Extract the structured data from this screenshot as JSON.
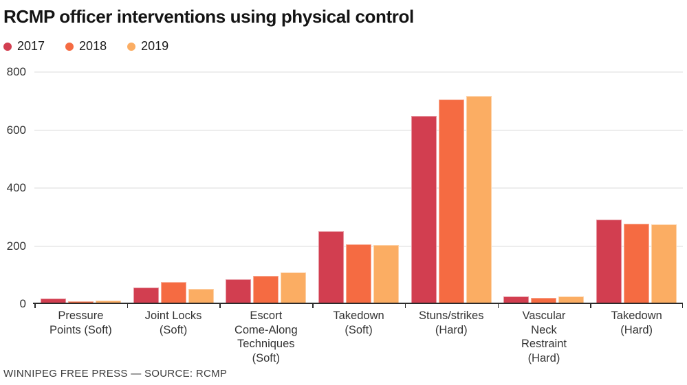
{
  "header": {
    "title": "RCMP officer interventions using physical control"
  },
  "footer": {
    "credit": "WINNIPEG FREE PRESS — SOURCE: RCMP"
  },
  "colors": {
    "series_2017": "#d23e50",
    "series_2018": "#f56b42",
    "series_2019": "#fbad63",
    "gridline": "#ededed",
    "axis": "#2b2b2b",
    "text": "#333333"
  },
  "chart_data": {
    "type": "bar",
    "title": "RCMP officer interventions using physical control",
    "categories": [
      "Pressure Points (Soft)",
      "Joint Locks (Soft)",
      "Escort Come-Along Techniques (Soft)",
      "Takedown (Soft)",
      "Stuns/strikes (Hard)",
      "Vascular Neck Restraint (Hard)",
      "Takedown (Hard)"
    ],
    "xtick_lines": [
      [
        "Pressure",
        "Points (Soft)"
      ],
      [
        "Joint Locks",
        "(Soft)"
      ],
      [
        "Escort",
        "Come-Along",
        "Techniques",
        "(Soft)"
      ],
      [
        "Takedown",
        "(Soft)"
      ],
      [
        "Stuns/strikes",
        "(Hard)"
      ],
      [
        "Vascular",
        "Neck",
        "Restraint",
        "(Hard)"
      ],
      [
        "Takedown",
        "(Hard)"
      ]
    ],
    "series": [
      {
        "name": "2017",
        "color": "#d23e50",
        "values": [
          20,
          57,
          85,
          250,
          648,
          26,
          290
        ]
      },
      {
        "name": "2018",
        "color": "#f56b42",
        "values": [
          10,
          76,
          98,
          206,
          706,
          21,
          276
        ]
      },
      {
        "name": "2019",
        "color": "#fbad63",
        "values": [
          12,
          53,
          109,
          204,
          717,
          25,
          274
        ]
      }
    ],
    "xlabel": "",
    "ylabel": "",
    "ylim": [
      0,
      800
    ],
    "yticks": [
      0,
      200,
      400,
      600,
      800
    ],
    "grid": true,
    "legend_position": "top-left"
  }
}
